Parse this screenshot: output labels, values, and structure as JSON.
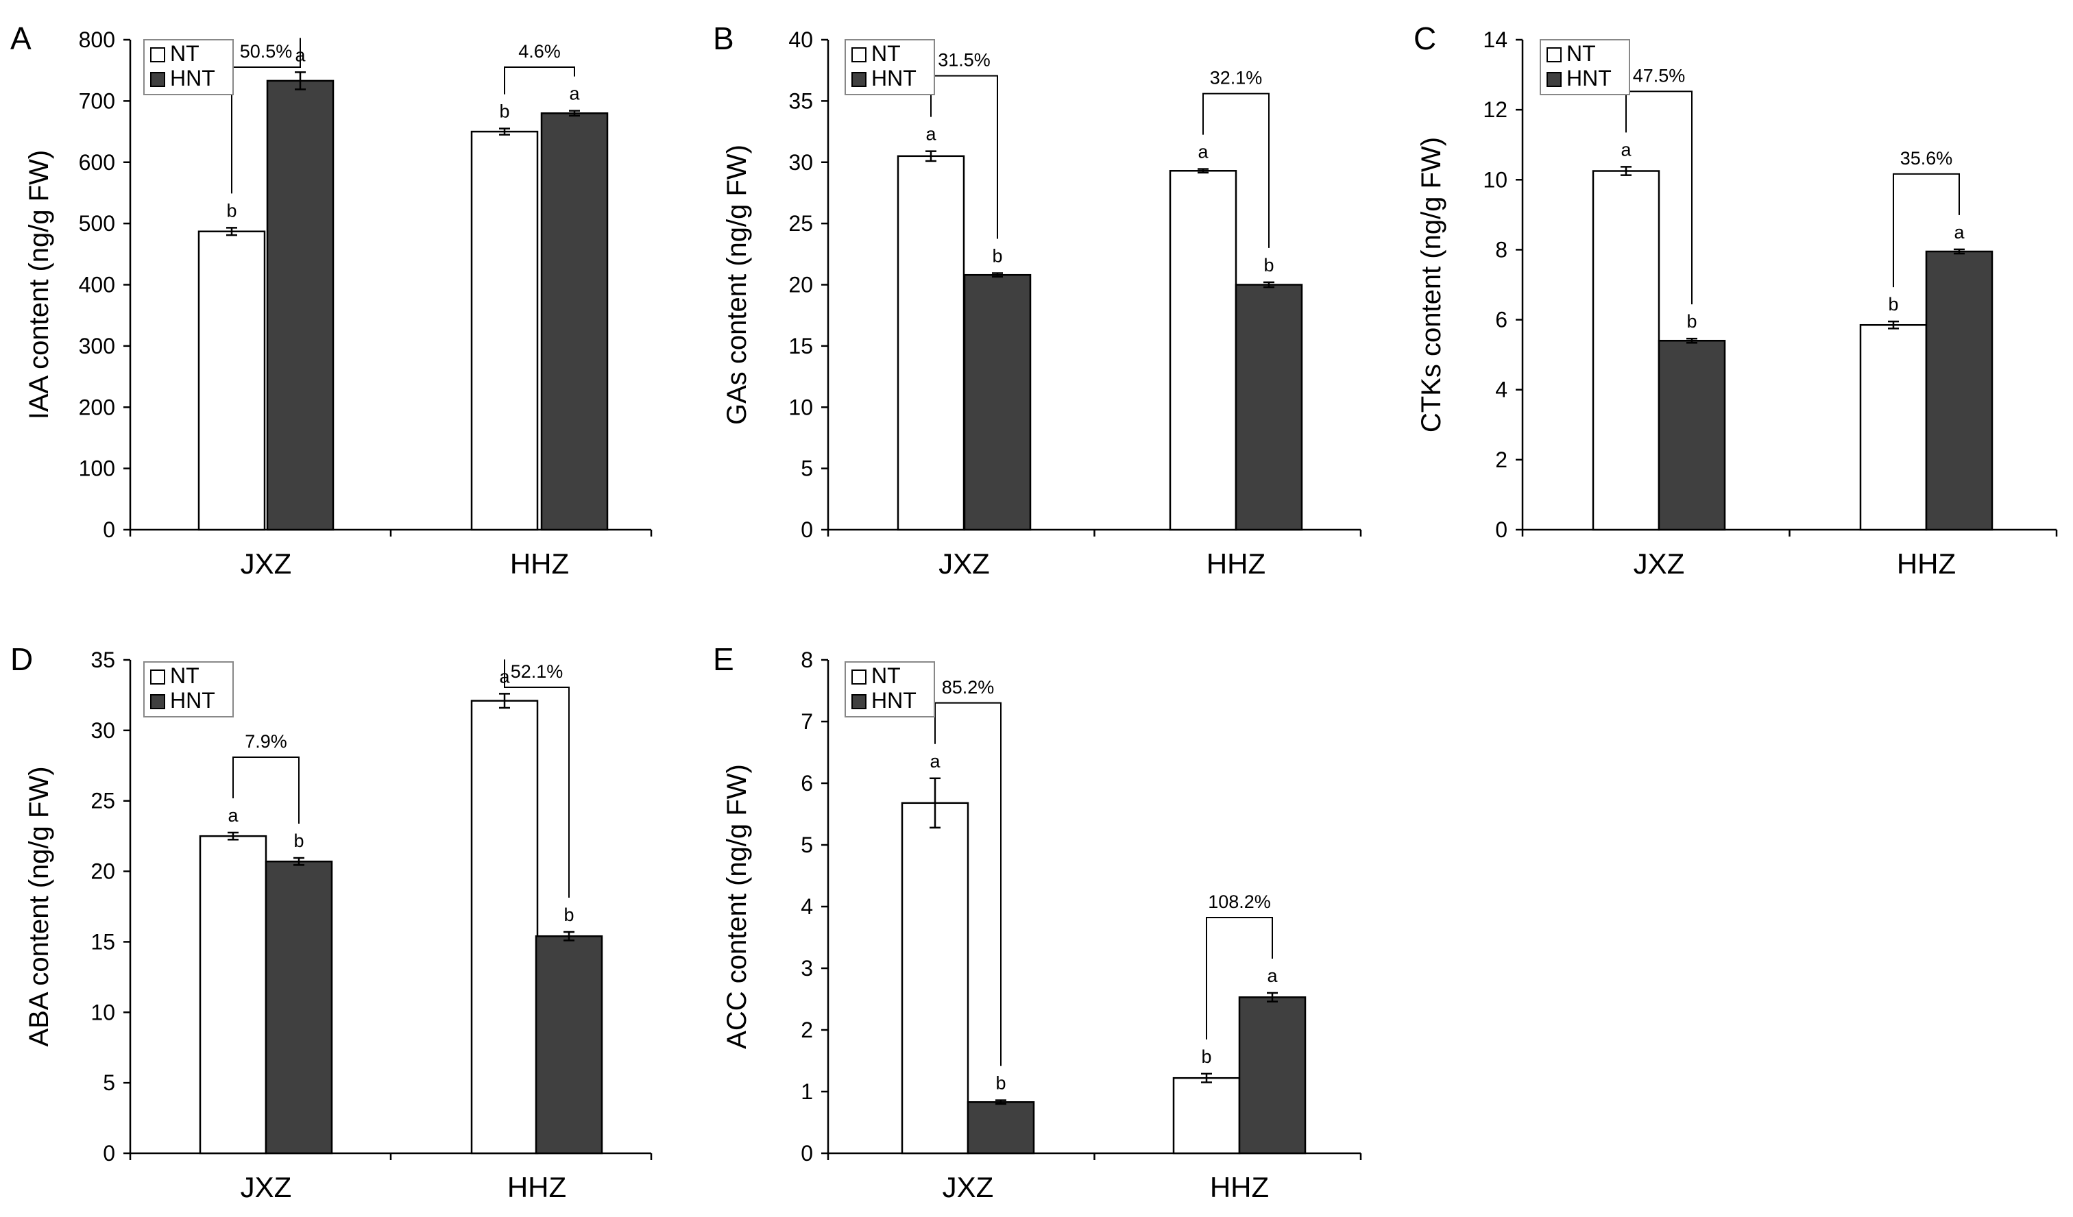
{
  "figure": {
    "legend_labels": [
      "NT",
      "HNT"
    ],
    "colors": {
      "nt_fill": "#ffffff",
      "hnt_fill": "#404040",
      "stroke": "#000000",
      "text": "#000000"
    }
  },
  "chart_data": [
    {
      "type": "bar",
      "panel_label": "A",
      "ylabel": "IAA content (ng/g FW)",
      "ylim": [
        0,
        800
      ],
      "yticks": [
        0,
        100,
        200,
        300,
        400,
        500,
        600,
        700,
        800
      ],
      "categories": [
        "JXZ",
        "HHZ"
      ],
      "series": [
        {
          "name": "NT",
          "values": [
            487,
            650
          ],
          "errors": [
            6,
            5
          ],
          "letters": [
            "b",
            "b"
          ]
        },
        {
          "name": "HNT",
          "values": [
            733,
            680
          ],
          "errors": [
            14,
            4
          ],
          "letters": [
            "a",
            "a"
          ]
        }
      ],
      "annotations": [
        "50.5%",
        "4.6%"
      ]
    },
    {
      "type": "bar",
      "panel_label": "B",
      "ylabel": "GAs content (ng/g FW)",
      "ylim": [
        0,
        40
      ],
      "yticks": [
        0,
        5,
        10,
        15,
        20,
        25,
        30,
        35,
        40
      ],
      "categories": [
        "JXZ",
        "HHZ"
      ],
      "series": [
        {
          "name": "NT",
          "values": [
            30.5,
            29.3
          ],
          "errors": [
            0.4,
            0.15
          ],
          "letters": [
            "a",
            "a"
          ]
        },
        {
          "name": "HNT",
          "values": [
            20.8,
            20.0
          ],
          "errors": [
            0.15,
            0.2
          ],
          "letters": [
            "b",
            "b"
          ]
        }
      ],
      "annotations": [
        "31.5%",
        "32.1%"
      ]
    },
    {
      "type": "bar",
      "panel_label": "C",
      "ylabel": "CTKs content (ng/g FW)",
      "ylim": [
        0,
        14
      ],
      "yticks": [
        0,
        2,
        4,
        6,
        8,
        10,
        12,
        14
      ],
      "categories": [
        "JXZ",
        "HHZ"
      ],
      "series": [
        {
          "name": "NT",
          "values": [
            10.25,
            5.85
          ],
          "errors": [
            0.12,
            0.1
          ],
          "letters": [
            "a",
            "b"
          ]
        },
        {
          "name": "HNT",
          "values": [
            5.4,
            7.95
          ],
          "errors": [
            0.06,
            0.06
          ],
          "letters": [
            "b",
            "a"
          ]
        }
      ],
      "annotations": [
        "47.5%",
        "35.6%"
      ]
    },
    {
      "type": "bar",
      "panel_label": "D",
      "ylabel": "ABA content (ng/g FW)",
      "ylim": [
        0,
        35
      ],
      "yticks": [
        0,
        5,
        10,
        15,
        20,
        25,
        30,
        35
      ],
      "categories": [
        "JXZ",
        "HHZ"
      ],
      "series": [
        {
          "name": "NT",
          "values": [
            22.5,
            32.1
          ],
          "errors": [
            0.25,
            0.5
          ],
          "letters": [
            "a",
            "a"
          ]
        },
        {
          "name": "HNT",
          "values": [
            20.7,
            15.4
          ],
          "errors": [
            0.25,
            0.3
          ],
          "letters": [
            "b",
            "b"
          ]
        }
      ],
      "annotations": [
        "7.9%",
        "52.1%"
      ]
    },
    {
      "type": "bar",
      "panel_label": "E",
      "ylabel": "ACC content (ng/g FW)",
      "ylim": [
        0,
        8
      ],
      "yticks": [
        0,
        1,
        2,
        3,
        4,
        5,
        6,
        7,
        8
      ],
      "categories": [
        "JXZ",
        "HHZ"
      ],
      "series": [
        {
          "name": "NT",
          "values": [
            5.68,
            1.22
          ],
          "errors": [
            0.4,
            0.07
          ],
          "letters": [
            "a",
            "b"
          ]
        },
        {
          "name": "HNT",
          "values": [
            0.83,
            2.53
          ],
          "errors": [
            0.03,
            0.07
          ],
          "letters": [
            "b",
            "a"
          ]
        }
      ],
      "annotations": [
        "85.2%",
        "108.2%"
      ]
    }
  ]
}
